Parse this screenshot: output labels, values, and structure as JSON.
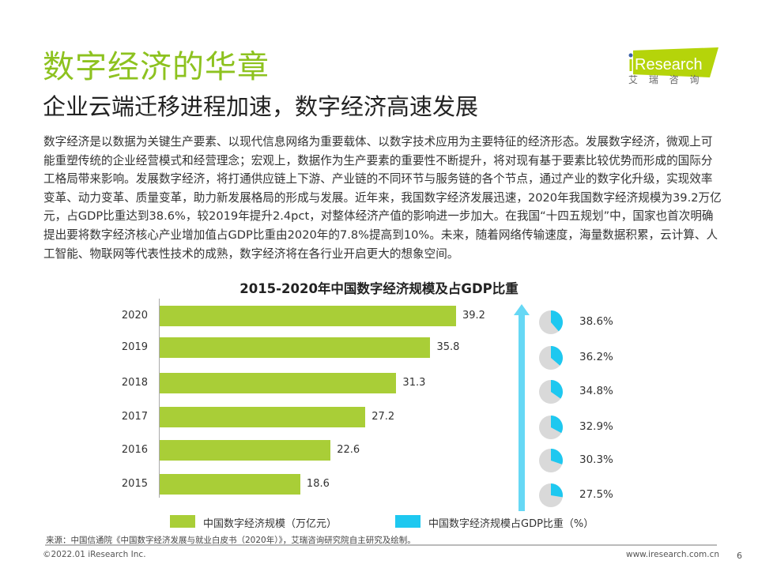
{
  "header": {
    "title": "数字经济的华章",
    "subtitle": "企业云端迁移进程加速，数字经济高速发展"
  },
  "logo": {
    "brand": "iResearch",
    "cn": "艾 瑞 咨 询",
    "color": "#b5d40a"
  },
  "body_text": "数字经济是以数据为关键生产要素、以现代信息网络为重要载体、以数字技术应用为主要特征的经济形态。发展数字经济，微观上可能重塑传统的企业经营模式和经营理念；宏观上，数据作为生产要素的重要性不断提升，将对现有基于要素比较优势而形成的国际分工格局带来影响。发展数字经济，将打通供应链上下游、产业链的不同环节与服务链的各个节点，通过产业的数字化升级，实现效率变革、动力变革、质量变革，助力新发展格局的形成与发展。近年来，我国数字经济发展迅速，2020年我国数字经济规模为39.2万亿元，占GDP比重达到38.6%，较2019年提升2.4pct，对整体经济产值的影响进一步加大。在我国“十四五规划”中，国家也首次明确提出要将数字经济核心产业增加值占GDP比重由2020年的7.8%提高到10%。未来，随着网络传输速度，海量数据积累，云计算、人工智能、物联网等代表性技术的成熟，数字经济将在各行业开启更大的想象空间。",
  "chart_data": {
    "type": "bar",
    "orientation": "horizontal",
    "title": "2015-2020年中国数字经济规模及占GDP比重",
    "categories": [
      "2020",
      "2019",
      "2018",
      "2017",
      "2016",
      "2015"
    ],
    "series": [
      {
        "name": "中国数字经济规模（万亿元）",
        "values": [
          39.2,
          35.8,
          31.3,
          27.2,
          22.6,
          18.6
        ],
        "color": "#a9ce37",
        "labels": [
          "39.2",
          "35.8",
          "31.3",
          "27.2",
          "22.6",
          "18.6"
        ]
      },
      {
        "name": "中国数字经济规模占GDP比重（%）",
        "values": [
          38.6,
          36.2,
          34.8,
          32.9,
          30.3,
          27.5
        ],
        "color": "#1ec8f0",
        "labels": [
          "38.6%",
          "36.2%",
          "34.8%",
          "32.9%",
          "30.3%",
          "27.5%"
        ],
        "type": "pie-icons"
      }
    ],
    "xlim": [
      0,
      40
    ],
    "grid": false,
    "legend": "bottom",
    "arrow_color": "#66d8f5",
    "pie_bg_color": "#d9d9d9"
  },
  "footer": {
    "source": "来源：中国信通院《中国数字经济发展与就业白皮书（2020年）》，艾瑞咨询研究院自主研究及绘制。",
    "copyright": "©2022.01 iResearch Inc.",
    "url": "www.iresearch.com.cn",
    "page": "6"
  }
}
